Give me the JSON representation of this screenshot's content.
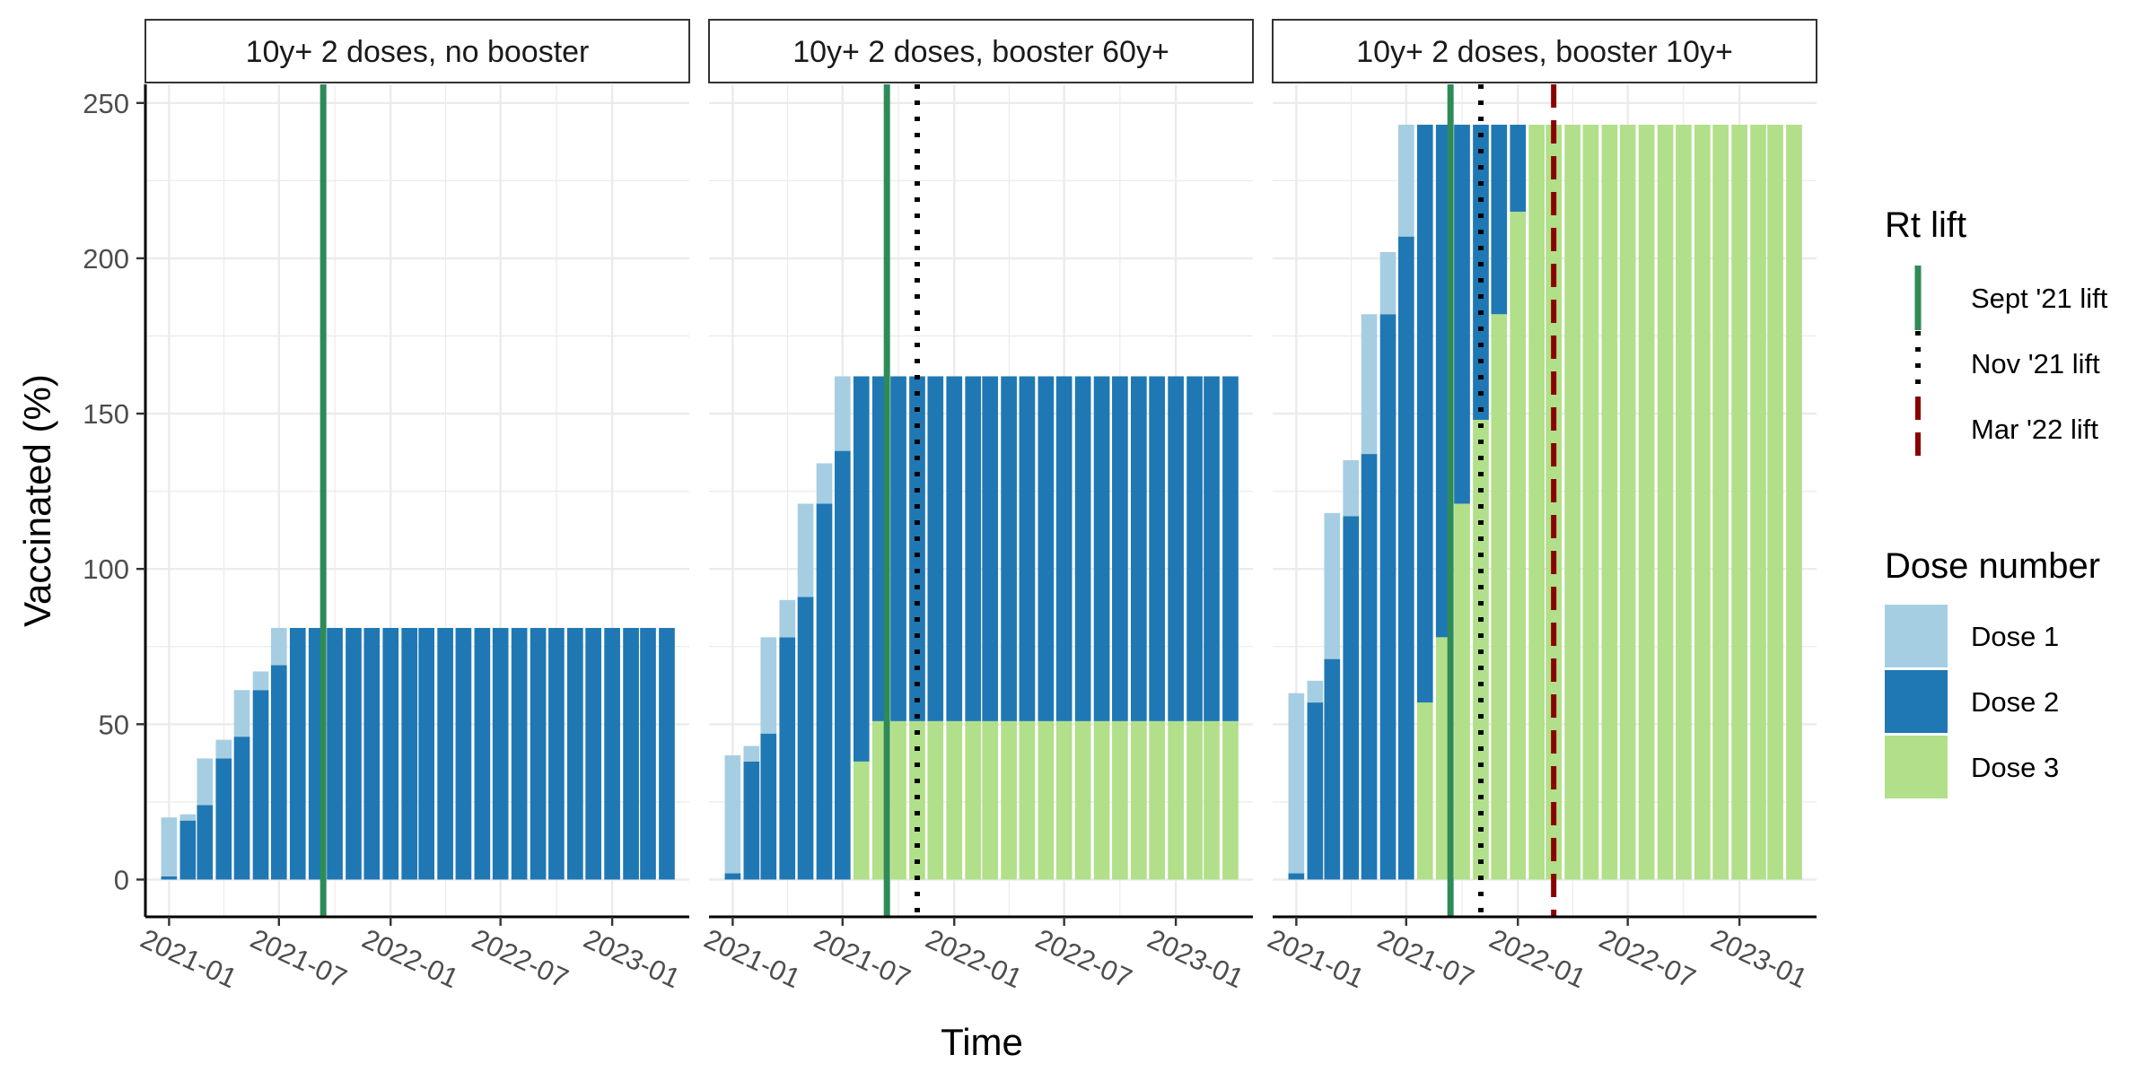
{
  "chart_data": {
    "type": "bar",
    "stacked": true,
    "xlabel": "Time",
    "ylabel": "Vaccinated (%)",
    "ylim": [
      -12,
      256
    ],
    "yticks": [
      0,
      50,
      100,
      150,
      200,
      250
    ],
    "x_range": [
      "2020-11-23",
      "2023-05-08"
    ],
    "x_ticks": [
      "2021-01-01",
      "2021-07-01",
      "2022-01-01",
      "2022-07-01",
      "2023-01-01"
    ],
    "x_tick_labels": [
      "2021-01",
      "2021-07",
      "2022-01",
      "2022-07",
      "2023-01"
    ],
    "categories": [
      "2021-01",
      "2021-02",
      "2021-03",
      "2021-04",
      "2021-05",
      "2021-06",
      "2021-07",
      "2021-08",
      "2021-09",
      "2021-10",
      "2021-11",
      "2021-12",
      "2022-01",
      "2022-02",
      "2022-03",
      "2022-04",
      "2022-05",
      "2022-06",
      "2022-07",
      "2022-08",
      "2022-09",
      "2022-10",
      "2022-11",
      "2022-12",
      "2023-01",
      "2023-02",
      "2023-03",
      "2023-04"
    ],
    "grid": true,
    "legend_position": "right",
    "colors": {
      "dose1": "#a6cee3",
      "dose2": "#1f78b4",
      "dose3": "#b2df8a",
      "sept": "#2e8b57",
      "nov": "#000000",
      "mar": "#8b0000",
      "panel_grid": "#ebebeb",
      "strip_fill": "#ffffff"
    },
    "legends": {
      "rt_lift": {
        "title": "Rt lift",
        "items": [
          {
            "key": "sept",
            "label": "Sept '21 lift",
            "style": "solid"
          },
          {
            "key": "nov",
            "label": "Nov '21 lift",
            "style": "dotted"
          },
          {
            "key": "mar",
            "label": "Mar '22 lift",
            "style": "dashed"
          }
        ]
      },
      "dose_number": {
        "title": "Dose number",
        "items": [
          {
            "key": "dose1",
            "label": "Dose 1"
          },
          {
            "key": "dose2",
            "label": "Dose 2"
          },
          {
            "key": "dose3",
            "label": "Dose 3"
          }
        ]
      }
    },
    "facets": [
      {
        "title": "10y+ 2 doses, no booster",
        "lifts": [
          {
            "key": "sept",
            "date": "2021-09-12"
          }
        ],
        "series": [
          {
            "name": "Dose 1",
            "values": [
              19,
              2,
              15,
              6,
              15,
              6,
              12,
              0,
              0,
              0,
              0,
              0,
              0,
              0,
              0,
              0,
              0,
              0,
              0,
              0,
              0,
              0,
              0,
              0,
              0,
              0,
              0,
              0
            ]
          },
          {
            "name": "Dose 2",
            "values": [
              1,
              19,
              24,
              39,
              46,
              61,
              69,
              81,
              81,
              81,
              81,
              81,
              81,
              81,
              81,
              81,
              81,
              81,
              81,
              81,
              81,
              81,
              81,
              81,
              81,
              81,
              81,
              81
            ]
          },
          {
            "name": "Dose 3",
            "values": [
              0,
              0,
              0,
              0,
              0,
              0,
              0,
              0,
              0,
              0,
              0,
              0,
              0,
              0,
              0,
              0,
              0,
              0,
              0,
              0,
              0,
              0,
              0,
              0,
              0,
              0,
              0,
              0
            ]
          }
        ]
      },
      {
        "title": "10y+ 2 doses, booster 60y+",
        "lifts": [
          {
            "key": "sept",
            "date": "2021-09-12"
          },
          {
            "key": "nov",
            "date": "2021-11-01"
          }
        ],
        "series": [
          {
            "name": "Dose 1",
            "values": [
              38,
              5,
              31,
              12,
              30,
              13,
              24,
              0,
              0,
              0,
              0,
              0,
              0,
              0,
              0,
              0,
              0,
              0,
              0,
              0,
              0,
              0,
              0,
              0,
              0,
              0,
              0,
              0
            ]
          },
          {
            "name": "Dose 2",
            "values": [
              2,
              38,
              47,
              78,
              91,
              121,
              138,
              124,
              111,
              111,
              111,
              111,
              111,
              111,
              111,
              111,
              111,
              111,
              111,
              111,
              111,
              111,
              111,
              111,
              111,
              111,
              111,
              111
            ]
          },
          {
            "name": "Dose 3",
            "values": [
              0,
              0,
              0,
              0,
              0,
              0,
              0,
              38,
              51,
              51,
              51,
              51,
              51,
              51,
              51,
              51,
              51,
              51,
              51,
              51,
              51,
              51,
              51,
              51,
              51,
              51,
              51,
              51
            ]
          }
        ]
      },
      {
        "title": "10y+ 2 doses, booster 10y+",
        "lifts": [
          {
            "key": "sept",
            "date": "2021-09-12"
          },
          {
            "key": "nov",
            "date": "2021-11-01"
          },
          {
            "key": "mar",
            "date": "2022-03-01"
          }
        ],
        "series": [
          {
            "name": "Dose 1",
            "values": [
              58,
              7,
              47,
              18,
              45,
              20,
              36,
              0,
              0,
              0,
              0,
              0,
              0,
              0,
              0,
              0,
              0,
              0,
              0,
              0,
              0,
              0,
              0,
              0,
              0,
              0,
              0,
              0
            ]
          },
          {
            "name": "Dose 2",
            "values": [
              2,
              57,
              71,
              117,
              137,
              182,
              207,
              186,
              165,
              122,
              95,
              61,
              28,
              0,
              0,
              0,
              0,
              0,
              0,
              0,
              0,
              0,
              0,
              0,
              0,
              0,
              0,
              0
            ]
          },
          {
            "name": "Dose 3",
            "values": [
              0,
              0,
              0,
              0,
              0,
              0,
              0,
              57,
              78,
              121,
              148,
              182,
              215,
              243,
              243,
              243,
              243,
              243,
              243,
              243,
              243,
              243,
              243,
              243,
              243,
              243,
              243,
              243
            ]
          }
        ]
      }
    ]
  }
}
